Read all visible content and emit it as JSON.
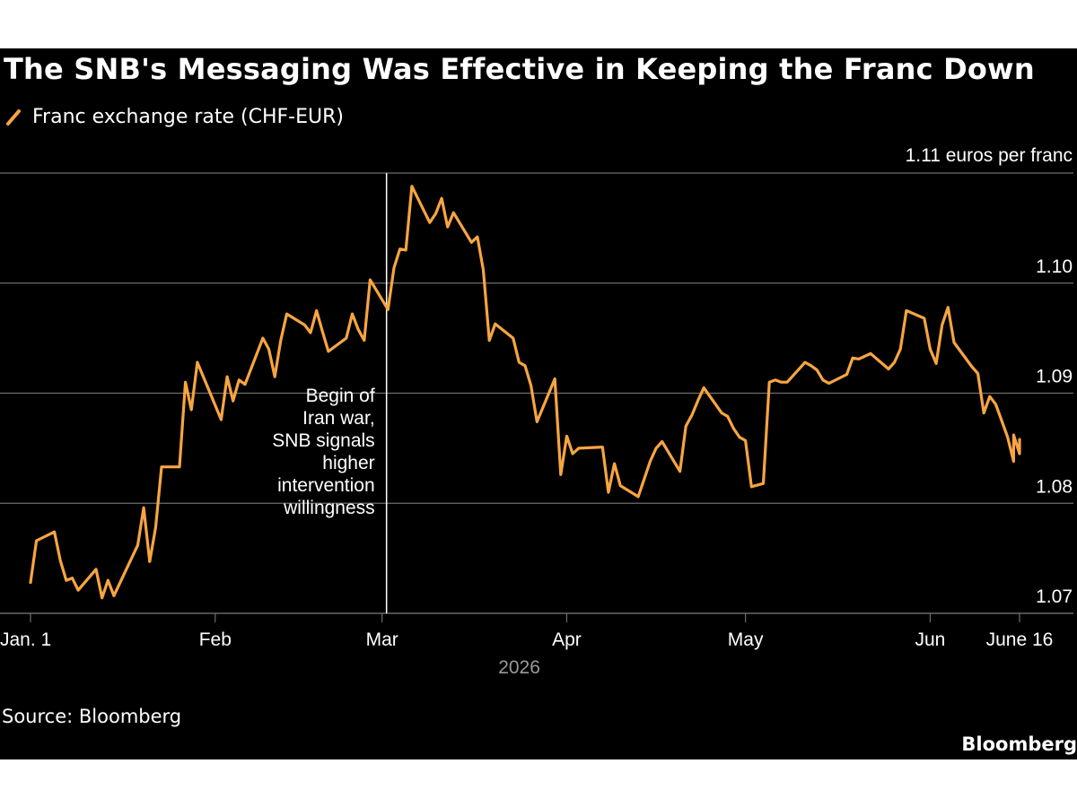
{
  "title": "The SNB's Messaging Was Effective in Keeping the Franc Down",
  "legend": {
    "label": "Franc exchange rate (CHF-EUR)",
    "color": "#f7a541"
  },
  "source": "Source: Bloomberg",
  "brand": "Bloomberg",
  "colors": {
    "background": "#000000",
    "line": "#f7a541",
    "grid": "#6e6e6e",
    "text": "#ffffff",
    "muted": "#9a9a9a"
  },
  "chart_data": {
    "type": "line",
    "x_year_label": "2026",
    "y_unit_label": "1.11 euros per franc",
    "ylim": [
      1.07,
      1.11
    ],
    "xlim": [
      "2026-01-01",
      "2026-06-16"
    ],
    "y_ticks": [
      {
        "value": 1.07,
        "label": "1.07"
      },
      {
        "value": 1.08,
        "label": "1.08"
      },
      {
        "value": 1.09,
        "label": "1.09"
      },
      {
        "value": 1.1,
        "label": "1.10"
      },
      {
        "value": 1.11,
        "label": ""
      }
    ],
    "x_ticks": [
      {
        "date": "2026-01-01",
        "label": "Jan. 1"
      },
      {
        "date": "2026-02-01",
        "label": "Feb"
      },
      {
        "date": "2026-03-01",
        "label": "Mar"
      },
      {
        "date": "2026-04-01",
        "label": "Apr"
      },
      {
        "date": "2026-05-01",
        "label": "May"
      },
      {
        "date": "2026-06-01",
        "label": "Jun"
      },
      {
        "date": "2026-06-16",
        "label": "June 16"
      }
    ],
    "grid": true,
    "annotation": {
      "date": "2026-03-01",
      "lines": [
        "Begin of",
        "Iran war,",
        "SNB signals",
        "higher",
        "intervention",
        "willingness"
      ]
    },
    "series": [
      {
        "values": [
          {
            "x": "2026-01-01",
            "y": 1.0728
          },
          {
            "x": "2026-01-02",
            "y": 1.0766
          },
          {
            "x": "2026-01-05",
            "y": 1.0774
          },
          {
            "x": "2026-01-06",
            "y": 1.0748
          },
          {
            "x": "2026-01-07",
            "y": 1.073
          },
          {
            "x": "2026-01-08",
            "y": 1.0732
          },
          {
            "x": "2026-01-09",
            "y": 1.0721
          },
          {
            "x": "2026-01-12",
            "y": 1.074
          },
          {
            "x": "2026-01-13",
            "y": 1.0714
          },
          {
            "x": "2026-01-14",
            "y": 1.073
          },
          {
            "x": "2026-01-15",
            "y": 1.0716
          },
          {
            "x": "2026-01-19",
            "y": 1.0762
          },
          {
            "x": "2026-01-20",
            "y": 1.0796
          },
          {
            "x": "2026-01-21",
            "y": 1.0747
          },
          {
            "x": "2026-01-22",
            "y": 1.0778
          },
          {
            "x": "2026-01-23",
            "y": 1.0833
          },
          {
            "x": "2026-01-26",
            "y": 1.0833
          },
          {
            "x": "2026-01-27",
            "y": 1.091
          },
          {
            "x": "2026-01-28",
            "y": 1.0885
          },
          {
            "x": "2026-01-29",
            "y": 1.0928
          },
          {
            "x": "2026-02-02",
            "y": 1.0876
          },
          {
            "x": "2026-02-03",
            "y": 1.0915
          },
          {
            "x": "2026-02-04",
            "y": 1.0893
          },
          {
            "x": "2026-02-05",
            "y": 1.0912
          },
          {
            "x": "2026-02-06",
            "y": 1.0908
          },
          {
            "x": "2026-02-09",
            "y": 1.095
          },
          {
            "x": "2026-02-10",
            "y": 1.094
          },
          {
            "x": "2026-02-11",
            "y": 1.0915
          },
          {
            "x": "2026-02-12",
            "y": 1.0948
          },
          {
            "x": "2026-02-13",
            "y": 1.0972
          },
          {
            "x": "2026-02-16",
            "y": 1.0962
          },
          {
            "x": "2026-02-17",
            "y": 1.0955
          },
          {
            "x": "2026-02-18",
            "y": 1.0975
          },
          {
            "x": "2026-02-19",
            "y": 1.0956
          },
          {
            "x": "2026-02-20",
            "y": 1.0938
          },
          {
            "x": "2026-02-23",
            "y": 1.095
          },
          {
            "x": "2026-02-24",
            "y": 1.0972
          },
          {
            "x": "2026-02-25",
            "y": 1.0958
          },
          {
            "x": "2026-02-26",
            "y": 1.0948
          },
          {
            "x": "2026-02-27",
            "y": 1.1003
          },
          {
            "x": "2026-03-02",
            "y": 1.0976
          },
          {
            "x": "2026-03-03",
            "y": 1.1014
          },
          {
            "x": "2026-03-04",
            "y": 1.1031
          },
          {
            "x": "2026-03-05",
            "y": 1.103
          },
          {
            "x": "2026-03-06",
            "y": 1.1088
          },
          {
            "x": "2026-03-09",
            "y": 1.1055
          },
          {
            "x": "2026-03-10",
            "y": 1.1063
          },
          {
            "x": "2026-03-11",
            "y": 1.1077
          },
          {
            "x": "2026-03-12",
            "y": 1.1051
          },
          {
            "x": "2026-03-13",
            "y": 1.1064
          },
          {
            "x": "2026-03-16",
            "y": 1.1037
          },
          {
            "x": "2026-03-17",
            "y": 1.1042
          },
          {
            "x": "2026-03-18",
            "y": 1.1012
          },
          {
            "x": "2026-03-19",
            "y": 1.0948
          },
          {
            "x": "2026-03-20",
            "y": 1.0963
          },
          {
            "x": "2026-03-23",
            "y": 1.095
          },
          {
            "x": "2026-03-24",
            "y": 1.0928
          },
          {
            "x": "2026-03-25",
            "y": 1.0925
          },
          {
            "x": "2026-03-26",
            "y": 1.0907
          },
          {
            "x": "2026-03-27",
            "y": 1.0874
          },
          {
            "x": "2026-03-30",
            "y": 1.0913
          },
          {
            "x": "2026-03-31",
            "y": 1.0826
          },
          {
            "x": "2026-04-01",
            "y": 1.0861
          },
          {
            "x": "2026-04-02",
            "y": 1.0845
          },
          {
            "x": "2026-04-03",
            "y": 1.085
          },
          {
            "x": "2026-04-07",
            "y": 1.0851
          },
          {
            "x": "2026-04-08",
            "y": 1.081
          },
          {
            "x": "2026-04-09",
            "y": 1.0836
          },
          {
            "x": "2026-04-10",
            "y": 1.0816
          },
          {
            "x": "2026-04-13",
            "y": 1.0806
          },
          {
            "x": "2026-04-14",
            "y": 1.0822
          },
          {
            "x": "2026-04-15",
            "y": 1.0838
          },
          {
            "x": "2026-04-16",
            "y": 1.085
          },
          {
            "x": "2026-04-17",
            "y": 1.0856
          },
          {
            "x": "2026-04-20",
            "y": 1.0829
          },
          {
            "x": "2026-04-21",
            "y": 1.087
          },
          {
            "x": "2026-04-22",
            "y": 1.088
          },
          {
            "x": "2026-04-23",
            "y": 1.0893
          },
          {
            "x": "2026-04-24",
            "y": 1.0905
          },
          {
            "x": "2026-04-27",
            "y": 1.0882
          },
          {
            "x": "2026-04-28",
            "y": 1.0879
          },
          {
            "x": "2026-04-29",
            "y": 1.0868
          },
          {
            "x": "2026-04-30",
            "y": 1.086
          },
          {
            "x": "2026-05-01",
            "y": 1.0857
          },
          {
            "x": "2026-05-02",
            "y": 1.0815
          },
          {
            "x": "2026-05-04",
            "y": 1.0818
          },
          {
            "x": "2026-05-05",
            "y": 1.091
          },
          {
            "x": "2026-05-06",
            "y": 1.0912
          },
          {
            "x": "2026-05-07",
            "y": 1.091
          },
          {
            "x": "2026-05-08",
            "y": 1.091
          },
          {
            "x": "2026-05-11",
            "y": 1.0928
          },
          {
            "x": "2026-05-12",
            "y": 1.0925
          },
          {
            "x": "2026-05-13",
            "y": 1.0921
          },
          {
            "x": "2026-05-14",
            "y": 1.0912
          },
          {
            "x": "2026-05-15",
            "y": 1.0909
          },
          {
            "x": "2026-05-18",
            "y": 1.0917
          },
          {
            "x": "2026-05-19",
            "y": 1.0932
          },
          {
            "x": "2026-05-20",
            "y": 1.0931
          },
          {
            "x": "2026-05-22",
            "y": 1.0936
          },
          {
            "x": "2026-05-25",
            "y": 1.0922
          },
          {
            "x": "2026-05-26",
            "y": 1.0928
          },
          {
            "x": "2026-05-27",
            "y": 1.094
          },
          {
            "x": "2026-05-28",
            "y": 1.0975
          },
          {
            "x": "2026-05-31",
            "y": 1.0968
          },
          {
            "x": "2026-06-01",
            "y": 1.094
          },
          {
            "x": "2026-06-02",
            "y": 1.0927
          },
          {
            "x": "2026-06-03",
            "y": 1.0962
          },
          {
            "x": "2026-06-04",
            "y": 1.0978
          },
          {
            "x": "2026-06-05",
            "y": 1.0946
          },
          {
            "x": "2026-06-08",
            "y": 1.0924
          },
          {
            "x": "2026-06-09",
            "y": 1.0918
          },
          {
            "x": "2026-06-10",
            "y": 1.0882
          },
          {
            "x": "2026-06-11",
            "y": 1.0897
          },
          {
            "x": "2026-06-12",
            "y": 1.089
          },
          {
            "x": "2026-06-13",
            "y": 1.0875
          },
          {
            "x": "2026-06-14",
            "y": 1.086
          },
          {
            "x": "2026-06-15",
            "y": 1.0838
          },
          {
            "x": "2026-06-15",
            "y": 1.0862
          },
          {
            "x": "2026-06-16",
            "y": 1.0845
          },
          {
            "x": "2026-06-16",
            "y": 1.0858
          }
        ]
      }
    ]
  }
}
